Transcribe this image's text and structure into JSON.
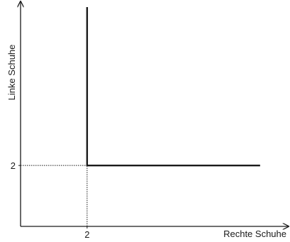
{
  "chart_data": {
    "type": "line",
    "title": "",
    "xlabel": "Rechte Schuhe",
    "ylabel": "Linke Schuhe",
    "xlim": [
      0,
      7.8
    ],
    "ylim": [
      0,
      7.2
    ],
    "x_ticks": [
      2
    ],
    "y_ticks": [
      2
    ],
    "grid": false,
    "series": [
      {
        "points": [
          [
            2,
            7.2
          ],
          [
            2,
            2
          ],
          [
            7.2,
            2
          ]
        ]
      }
    ],
    "reference_lines": [
      {
        "points": [
          [
            0,
            2
          ],
          [
            2,
            2
          ]
        ],
        "style": "dotted"
      },
      {
        "points": [
          [
            2,
            0
          ],
          [
            2,
            2
          ]
        ],
        "style": "dotted"
      }
    ],
    "colors": {
      "curve": "#1a1a1a",
      "axis": "#1a1a1a",
      "guide": "#1a1a1a"
    }
  }
}
